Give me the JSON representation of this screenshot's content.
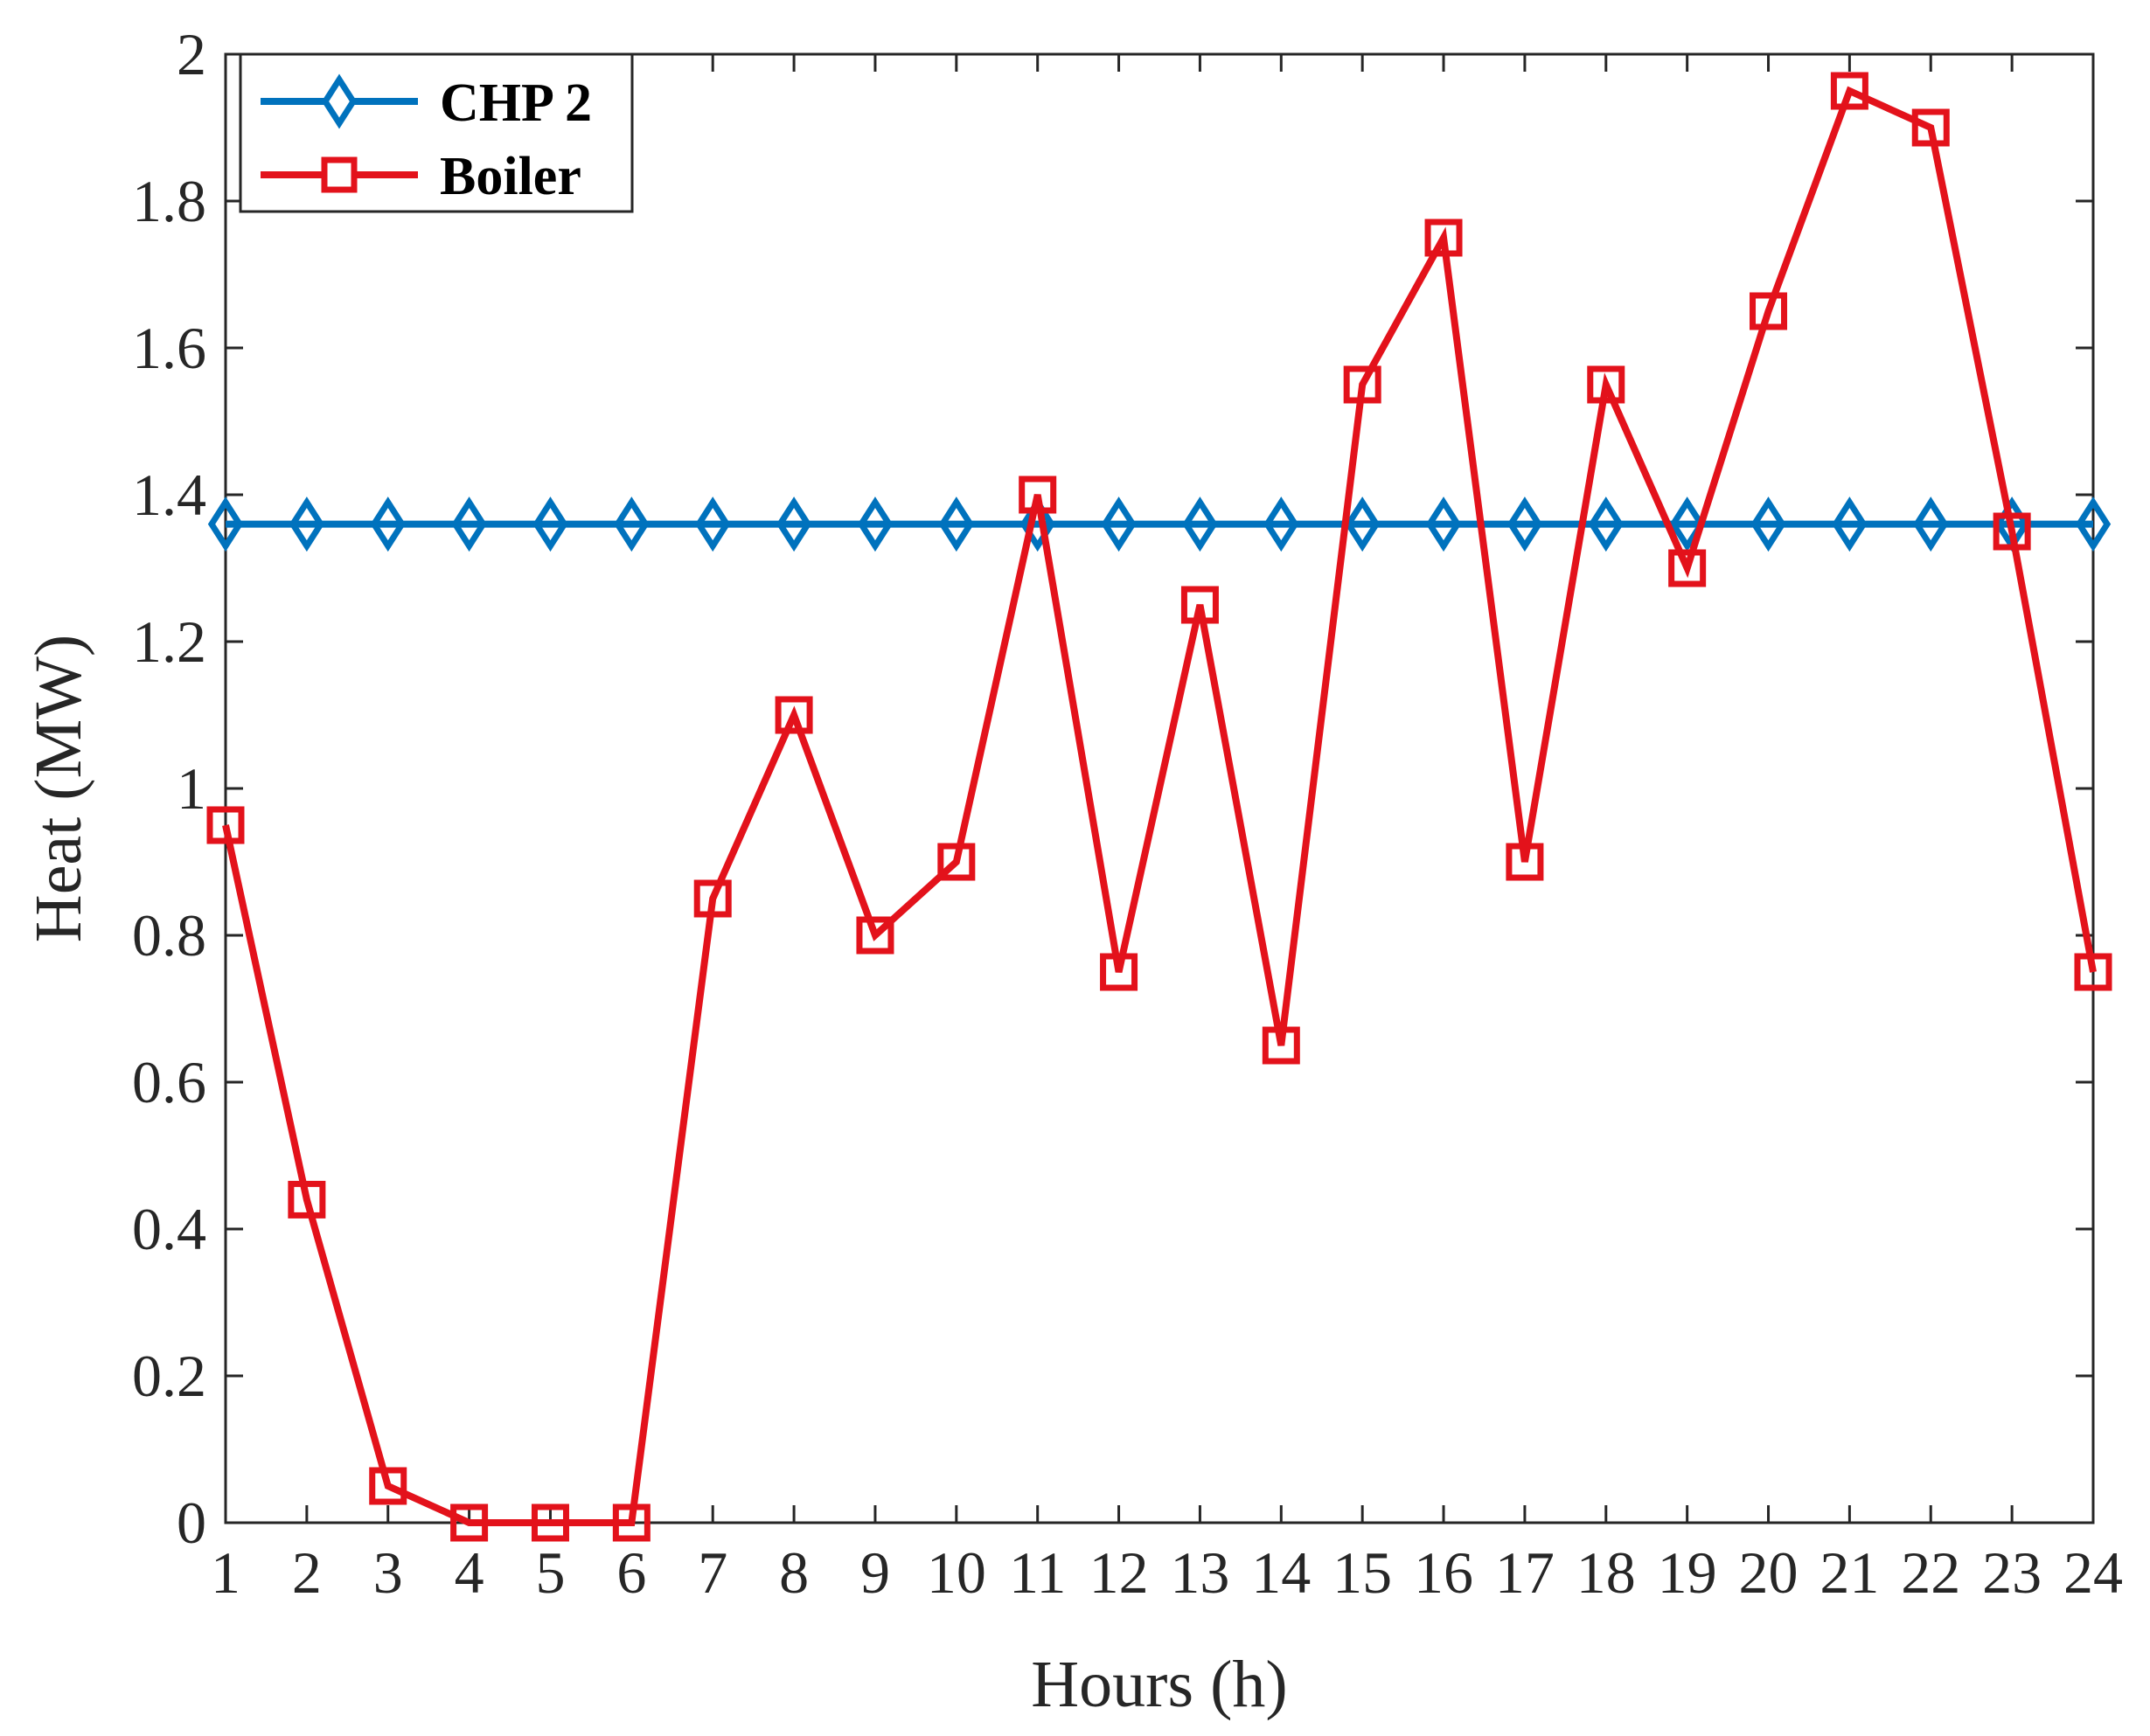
{
  "chart_data": {
    "type": "line",
    "xlabel": "Hours (h)",
    "ylabel": "Heat (MW)",
    "x": [
      1,
      2,
      3,
      4,
      5,
      6,
      7,
      8,
      9,
      10,
      11,
      12,
      13,
      14,
      15,
      16,
      17,
      18,
      19,
      20,
      21,
      22,
      23,
      24
    ],
    "xticks": [
      "1",
      "2",
      "3",
      "4",
      "5",
      "6",
      "7",
      "8",
      "9",
      "10",
      "11",
      "12",
      "13",
      "14",
      "15",
      "16",
      "17",
      "18",
      "19",
      "20",
      "21",
      "22",
      "23",
      "24"
    ],
    "ylim": [
      0,
      2
    ],
    "yticks": [
      "0",
      "0.2",
      "0.4",
      "0.6",
      "0.8",
      "1",
      "1.2",
      "1.4",
      "1.6",
      "1.8",
      "2"
    ],
    "grid": false,
    "legend_position": "top-left",
    "series": [
      {
        "name": "CHP 2",
        "color": "#0072BD",
        "marker": "diamond",
        "values": [
          1.36,
          1.36,
          1.36,
          1.36,
          1.36,
          1.36,
          1.36,
          1.36,
          1.36,
          1.36,
          1.36,
          1.36,
          1.36,
          1.36,
          1.36,
          1.36,
          1.36,
          1.36,
          1.36,
          1.36,
          1.36,
          1.36,
          1.36,
          1.36
        ]
      },
      {
        "name": "Boiler",
        "color": "#E3121B",
        "marker": "square",
        "values": [
          0.95,
          0.44,
          0.05,
          0,
          0,
          0,
          0.85,
          1.1,
          0.8,
          0.9,
          1.4,
          0.75,
          1.25,
          0.65,
          1.55,
          1.75,
          0.9,
          1.55,
          1.3,
          1.65,
          1.95,
          1.9,
          1.35,
          0.75
        ]
      }
    ]
  }
}
